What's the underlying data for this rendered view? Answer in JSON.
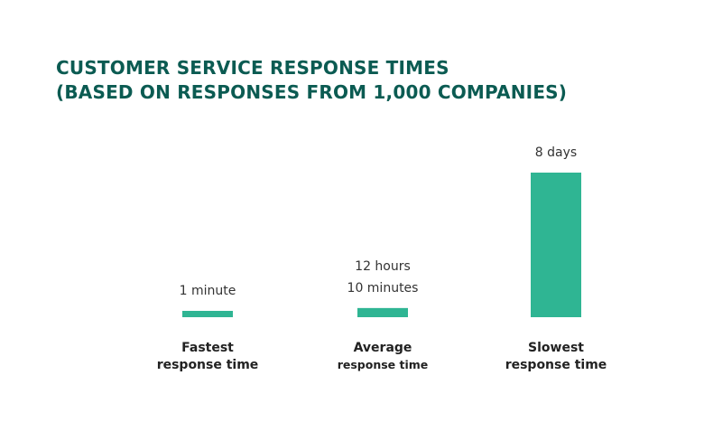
{
  "chart_data": {
    "type": "bar",
    "title": "CUSTOMER SERVICE RESPONSE TIMES",
    "subtitle": "(BASED ON RESPONSES FROM 1,000 COMPANIES)",
    "categories": [
      [
        "Fastest",
        "response time"
      ],
      [
        "Average",
        "response time"
      ],
      [
        "Slowest",
        "response time"
      ]
    ],
    "values_minutes": [
      1,
      730,
      11520
    ],
    "value_labels": [
      [
        "1 minute"
      ],
      [
        "12 hours",
        "10 minutes"
      ],
      [
        "8 days"
      ]
    ],
    "xlabel": "",
    "ylabel": "",
    "grid": false,
    "legend": "none",
    "colors": {
      "bar": "#2fb593",
      "title": "#0b5b52",
      "label": "#333333",
      "category": "#222222"
    }
  }
}
